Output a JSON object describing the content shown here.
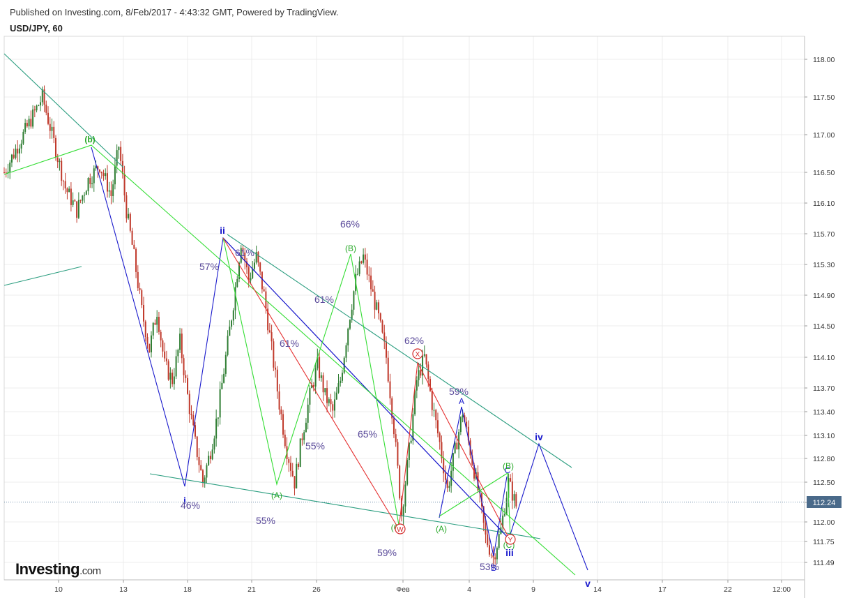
{
  "header": {
    "published": "Published on Investing.com, 8/Feb/2017 - 4:43:32 GMT, Powered by TradingView.",
    "symbol": "USD/JPY, 60"
  },
  "logo": {
    "brand": "Investing",
    "tld": ".com"
  },
  "colors": {
    "candle_up": "#2e7d32",
    "candle_down": "#c0392b",
    "blue": "#1a1acc",
    "green": "#33dd33",
    "red": "#e53030",
    "teal": "#2a9d7f",
    "label_purple": "#5a4a9a",
    "grid": "#ececec",
    "price_tag": "#4a6a8a"
  },
  "chart_data": {
    "type": "candlestick",
    "symbol": "USD/JPY",
    "interval": "60",
    "ylim": [
      111.3,
      118.3
    ],
    "y_ticks": [
      "118.00",
      "117.50",
      "117.00",
      "116.50",
      "116.10",
      "115.70",
      "115.30",
      "114.90",
      "114.50",
      "114.10",
      "113.70",
      "113.40",
      "113.10",
      "112.80",
      "112.50",
      "112.24",
      "112.00",
      "111.75",
      "111.49"
    ],
    "x_ticks": [
      "10",
      "13",
      "18",
      "21",
      "26",
      "Фев",
      "4",
      "9",
      "14",
      "17",
      "22",
      "12:00"
    ],
    "current_price": "112.24",
    "price_path": [
      [
        0,
        116.5
      ],
      [
        3,
        116.8
      ],
      [
        7,
        117.2
      ],
      [
        10,
        117.5
      ],
      [
        13,
        116.9
      ],
      [
        16,
        116.3
      ],
      [
        19,
        116.0
      ],
      [
        22,
        116.4
      ],
      [
        25,
        116.6
      ],
      [
        28,
        116.2
      ],
      [
        30,
        116.85
      ],
      [
        32,
        116.0
      ],
      [
        34,
        115.4
      ],
      [
        36,
        114.7
      ],
      [
        38,
        114.2
      ],
      [
        40,
        114.7
      ],
      [
        42,
        114.0
      ],
      [
        44,
        113.8
      ],
      [
        46,
        114.3
      ],
      [
        48,
        113.6
      ],
      [
        50,
        113.0
      ],
      [
        52,
        112.5
      ],
      [
        54,
        112.9
      ],
      [
        56,
        113.4
      ],
      [
        58,
        114.1
      ],
      [
        60,
        114.8
      ],
      [
        62,
        115.6
      ],
      [
        64,
        115.1
      ],
      [
        66,
        115.4
      ],
      [
        68,
        114.9
      ],
      [
        70,
        114.2
      ],
      [
        72,
        113.5
      ],
      [
        74,
        112.9
      ],
      [
        76,
        112.5
      ],
      [
        78,
        113.1
      ],
      [
        80,
        113.6
      ],
      [
        82,
        114.0
      ],
      [
        84,
        113.6
      ],
      [
        86,
        113.4
      ],
      [
        88,
        113.8
      ],
      [
        90,
        114.5
      ],
      [
        92,
        115.1
      ],
      [
        94,
        115.4
      ],
      [
        96,
        115.0
      ],
      [
        98,
        114.6
      ],
      [
        100,
        114.1
      ],
      [
        102,
        113.2
      ],
      [
        104,
        112.1
      ],
      [
        106,
        112.9
      ],
      [
        108,
        113.8
      ],
      [
        110,
        114.1
      ],
      [
        112,
        113.5
      ],
      [
        114,
        113.0
      ],
      [
        116,
        112.4
      ],
      [
        118,
        112.9
      ],
      [
        120,
        113.4
      ],
      [
        122,
        112.9
      ],
      [
        124,
        112.4
      ],
      [
        126,
        111.8
      ],
      [
        128,
        111.55
      ],
      [
        130,
        111.9
      ],
      [
        132,
        112.5
      ],
      [
        134,
        112.2
      ]
    ],
    "annotations": [
      {
        "text": "(b)",
        "price": 116.95,
        "color": "green"
      },
      {
        "text": "ii",
        "price": 115.85,
        "color": "blue"
      },
      {
        "text": "i",
        "price": 112.3,
        "color": "blue"
      },
      {
        "text": "iii",
        "price": 111.6,
        "color": "blue"
      },
      {
        "text": "iv",
        "price": 113.1,
        "color": "blue"
      },
      {
        "text": "v",
        "price": 111.2,
        "color": "blue"
      },
      {
        "text": "A",
        "price": 113.55,
        "color": "blue"
      },
      {
        "text": "B",
        "price": 111.35,
        "color": "blue"
      },
      {
        "text": "C",
        "price": 112.68,
        "color": "blue"
      },
      {
        "text": "(B)",
        "price": 115.6,
        "color": "green"
      },
      {
        "text": "(A)",
        "price": 112.35,
        "color": "green"
      },
      {
        "text": "(C)",
        "price": 111.93,
        "color": "green"
      },
      {
        "text": "(A)",
        "price": 111.9,
        "color": "green"
      },
      {
        "text": "(B)",
        "price": 112.73,
        "color": "green"
      },
      {
        "text": "(C)",
        "price": 111.73,
        "color": "green"
      },
      {
        "text": "W",
        "price": 111.88,
        "color": "red"
      },
      {
        "text": "X",
        "price": 114.15,
        "color": "red"
      },
      {
        "text": "Y",
        "price": 111.75,
        "color": "red"
      },
      {
        "text": "57%",
        "price": 115.3,
        "color": "purple"
      },
      {
        "text": "61%",
        "price": 115.55,
        "color": "purple"
      },
      {
        "text": "66%",
        "price": 115.9,
        "color": "purple"
      },
      {
        "text": "61%",
        "price": 114.9,
        "color": "purple"
      },
      {
        "text": "61%",
        "price": 114.3,
        "color": "purple"
      },
      {
        "text": "62%",
        "price": 114.35,
        "color": "purple"
      },
      {
        "text": "59%",
        "price": 113.68,
        "color": "purple"
      },
      {
        "text": "65%",
        "price": 113.1,
        "color": "purple"
      },
      {
        "text": "55%",
        "price": 112.9,
        "color": "purple"
      },
      {
        "text": "46%",
        "price": 112.22,
        "color": "purple"
      },
      {
        "text": "55%",
        "price": 112.03,
        "color": "purple"
      },
      {
        "text": "59%",
        "price": 111.6,
        "color": "purple"
      },
      {
        "text": "53%",
        "price": 111.45,
        "color": "purple"
      }
    ]
  }
}
